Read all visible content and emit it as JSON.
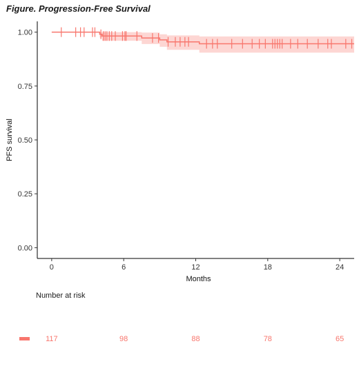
{
  "title": "Figure. Progression-Free Survival",
  "chart_data": {
    "type": "line",
    "subtype": "kaplan-meier",
    "xlabel": "Months",
    "ylabel": "PFS survival",
    "xlim": [
      -1.2,
      25.2
    ],
    "ylim": [
      -0.05,
      1.05
    ],
    "x_ticks": [
      "0",
      "6",
      "12",
      "18",
      "24"
    ],
    "y_ticks": [
      "0.00",
      "0.25",
      "0.50",
      "0.75",
      "1.00"
    ],
    "x_tick_values": [
      0,
      6,
      12,
      18,
      24
    ],
    "y_tick_values": [
      0,
      0.25,
      0.5,
      0.75,
      1.0
    ],
    "grid": false,
    "series_color": "#F8766D",
    "series": [
      {
        "steps": [
          [
            0,
            1.0
          ],
          [
            4.0,
            0.99
          ],
          [
            4.2,
            0.982
          ],
          [
            7.5,
            0.973
          ],
          [
            9.0,
            0.964
          ],
          [
            9.6,
            0.955
          ],
          [
            12.3,
            0.946
          ],
          [
            25.2,
            0.946
          ]
        ],
        "ci_upper": [
          [
            0,
            1.0
          ],
          [
            4.0,
            1.0
          ],
          [
            4.2,
            1.0
          ],
          [
            7.5,
            0.998
          ],
          [
            9.0,
            0.99
          ],
          [
            9.6,
            0.985
          ],
          [
            12.3,
            0.98
          ],
          [
            25.2,
            0.98
          ]
        ],
        "ci_lower": [
          [
            0,
            1.0
          ],
          [
            4.0,
            0.975
          ],
          [
            4.2,
            0.96
          ],
          [
            7.5,
            0.945
          ],
          [
            9.0,
            0.932
          ],
          [
            9.6,
            0.918
          ],
          [
            12.3,
            0.905
          ],
          [
            25.2,
            0.905
          ]
        ],
        "censor_times": [
          0.8,
          2.0,
          2.4,
          2.7,
          3.4,
          3.6,
          4.1,
          4.3,
          4.45,
          4.6,
          4.8,
          5.0,
          5.3,
          5.9,
          6.1,
          6.2,
          7.1,
          8.4,
          8.9,
          9.7,
          10.3,
          10.7,
          11.1,
          11.4,
          12.9,
          13.4,
          13.8,
          15.0,
          15.9,
          16.7,
          17.3,
          17.8,
          18.4,
          18.6,
          18.8,
          19.0,
          19.2,
          19.9,
          20.5,
          21.3,
          22.2,
          23.0,
          23.3,
          24.5,
          25.0
        ]
      }
    ],
    "risk_table": {
      "title": "Number at risk",
      "times": [
        0,
        6,
        12,
        18,
        24
      ],
      "counts": [
        "117",
        "98",
        "88",
        "78",
        "65"
      ]
    }
  }
}
